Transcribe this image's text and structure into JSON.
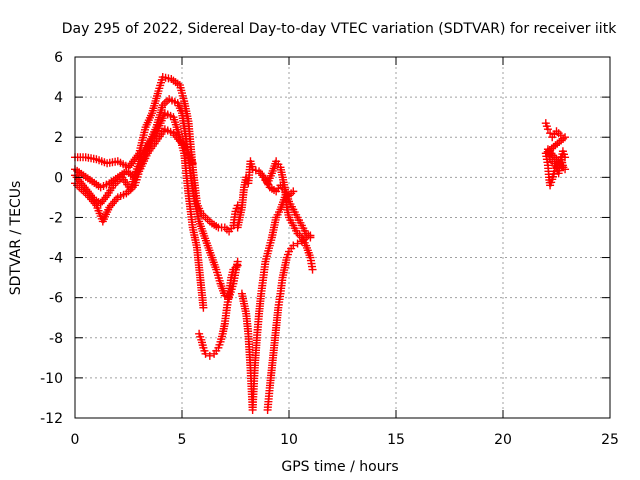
{
  "chart_data": {
    "type": "scatter",
    "title": "Day 295 of 2022, Sidereal Day-to-day VTEC variation (SDTVAR) for receiver iitk",
    "xlabel": "GPS time / hours",
    "ylabel": "SDTVAR / TECUs",
    "xlim": [
      0,
      25
    ],
    "ylim": [
      -12,
      6
    ],
    "xticks": [
      0,
      5,
      10,
      15,
      20,
      25
    ],
    "yticks": [
      -12,
      -10,
      -8,
      -6,
      -4,
      -2,
      0,
      2,
      4,
      6
    ],
    "grid": true,
    "marker": "plus",
    "color": "#ff0000",
    "series": [
      {
        "points": [
          [
            0.0,
            1.0
          ],
          [
            0.5,
            1.0
          ],
          [
            1.0,
            0.9
          ],
          [
            1.5,
            0.7
          ],
          [
            2.0,
            0.8
          ],
          [
            2.5,
            0.5
          ],
          [
            3.0,
            1.2
          ],
          [
            3.3,
            2.5
          ],
          [
            3.6,
            3.2
          ],
          [
            3.9,
            4.3
          ],
          [
            4.1,
            5.0
          ],
          [
            4.5,
            4.9
          ],
          [
            4.9,
            4.6
          ],
          [
            5.1,
            3.8
          ],
          [
            5.3,
            2.8
          ],
          [
            5.5,
            0.5
          ],
          [
            5.7,
            -1.3
          ],
          [
            5.9,
            -1.8
          ],
          [
            6.1,
            -2.0
          ],
          [
            6.4,
            -2.3
          ],
          [
            6.7,
            -2.5
          ],
          [
            7.0,
            -2.5
          ],
          [
            7.2,
            -2.7
          ],
          [
            7.4,
            -2.4
          ],
          [
            7.5,
            -1.7
          ],
          [
            7.6,
            -1.4
          ]
        ]
      },
      {
        "points": [
          [
            0.0,
            0.4
          ],
          [
            0.4,
            0.1
          ],
          [
            0.8,
            -0.2
          ],
          [
            1.2,
            -0.5
          ],
          [
            1.6,
            -0.3
          ],
          [
            2.0,
            0.0
          ],
          [
            2.4,
            0.3
          ],
          [
            2.8,
            0.0
          ],
          [
            3.2,
            0.9
          ],
          [
            3.5,
            1.8
          ],
          [
            3.8,
            2.5
          ],
          [
            4.1,
            3.6
          ],
          [
            4.4,
            3.9
          ],
          [
            4.8,
            3.7
          ],
          [
            5.0,
            3.2
          ],
          [
            5.2,
            1.8
          ],
          [
            5.4,
            0.2
          ],
          [
            5.6,
            -1.2
          ],
          [
            5.8,
            -2.2
          ],
          [
            6.0,
            -2.8
          ],
          [
            6.2,
            -3.4
          ],
          [
            6.4,
            -4.0
          ],
          [
            6.6,
            -4.6
          ],
          [
            6.8,
            -5.3
          ],
          [
            7.0,
            -5.9
          ],
          [
            7.2,
            -6.0
          ],
          [
            7.4,
            -5.3
          ],
          [
            7.6,
            -4.2
          ]
        ]
      },
      {
        "points": [
          [
            0.0,
            0.1
          ],
          [
            0.3,
            -0.3
          ],
          [
            0.6,
            -0.7
          ],
          [
            0.9,
            -1.1
          ],
          [
            1.2,
            -1.3
          ],
          [
            1.5,
            -0.9
          ],
          [
            1.8,
            -0.4
          ],
          [
            2.2,
            0.0
          ],
          [
            2.6,
            -0.6
          ],
          [
            3.0,
            0.8
          ],
          [
            3.4,
            1.6
          ],
          [
            3.8,
            2.2
          ],
          [
            4.2,
            3.2
          ],
          [
            4.6,
            3.0
          ],
          [
            4.9,
            2.0
          ],
          [
            5.1,
            1.2
          ],
          [
            5.3,
            -0.8
          ],
          [
            5.5,
            -2.5
          ],
          [
            5.7,
            -3.5
          ],
          [
            5.8,
            -4.5
          ],
          [
            5.9,
            -5.5
          ],
          [
            6.0,
            -6.5
          ]
        ]
      },
      {
        "points": [
          [
            0.0,
            -0.3
          ],
          [
            0.3,
            -0.6
          ],
          [
            0.6,
            -0.9
          ],
          [
            1.0,
            -1.4
          ],
          [
            1.3,
            -2.2
          ],
          [
            1.6,
            -1.5
          ],
          [
            2.0,
            -1.0
          ],
          [
            2.4,
            -0.8
          ],
          [
            2.8,
            -0.4
          ],
          [
            3.0,
            0.3
          ],
          [
            3.4,
            1.2
          ],
          [
            3.8,
            1.8
          ],
          [
            4.2,
            2.4
          ],
          [
            4.6,
            2.2
          ],
          [
            4.9,
            1.8
          ],
          [
            5.2,
            1.5
          ],
          [
            5.5,
            0.7
          ]
        ]
      },
      {
        "points": [
          [
            5.8,
            -7.8
          ],
          [
            5.9,
            -8.1
          ],
          [
            6.0,
            -8.5
          ],
          [
            6.1,
            -8.8
          ],
          [
            6.3,
            -8.9
          ],
          [
            6.5,
            -8.8
          ],
          [
            6.7,
            -8.5
          ],
          [
            6.8,
            -8.2
          ],
          [
            6.9,
            -7.8
          ],
          [
            7.0,
            -7.3
          ],
          [
            7.1,
            -6.5
          ],
          [
            7.2,
            -5.8
          ],
          [
            7.3,
            -5.0
          ],
          [
            7.4,
            -4.6
          ],
          [
            7.5,
            -4.5
          ],
          [
            7.6,
            -4.4
          ]
        ]
      },
      {
        "points": [
          [
            7.6,
            -2.5
          ],
          [
            7.8,
            -1.5
          ],
          [
            7.9,
            -0.5
          ],
          [
            8.0,
            0.0
          ],
          [
            8.1,
            -0.3
          ],
          [
            8.2,
            0.8
          ],
          [
            8.3,
            0.4
          ],
          [
            8.6,
            0.3
          ],
          [
            8.9,
            -0.1
          ],
          [
            9.1,
            -0.5
          ],
          [
            9.4,
            -0.7
          ],
          [
            9.6,
            -0.4
          ],
          [
            9.8,
            -0.6
          ],
          [
            10.0,
            -1.2
          ],
          [
            10.2,
            -1.6
          ],
          [
            10.4,
            -2.0
          ],
          [
            10.6,
            -2.4
          ],
          [
            10.8,
            -2.8
          ],
          [
            11.0,
            -3.0
          ]
        ]
      },
      {
        "points": [
          [
            7.8,
            -5.8
          ],
          [
            7.9,
            -6.3
          ],
          [
            8.0,
            -6.8
          ],
          [
            8.1,
            -7.8
          ],
          [
            8.2,
            -9.5
          ],
          [
            8.3,
            -11.6
          ],
          [
            8.4,
            -9.5
          ],
          [
            8.5,
            -8.0
          ],
          [
            8.6,
            -6.8
          ],
          [
            8.7,
            -5.8
          ],
          [
            8.8,
            -5.0
          ],
          [
            8.9,
            -4.2
          ],
          [
            9.0,
            -3.8
          ],
          [
            9.1,
            -3.4
          ],
          [
            9.2,
            -3.0
          ],
          [
            9.3,
            -2.5
          ],
          [
            9.4,
            -2.0
          ],
          [
            9.6,
            -1.6
          ],
          [
            9.8,
            -1.0
          ],
          [
            10.0,
            -0.9
          ],
          [
            10.2,
            -0.7
          ]
        ]
      },
      {
        "points": [
          [
            8.8,
            0.0
          ],
          [
            9.0,
            -0.3
          ],
          [
            9.2,
            0.2
          ],
          [
            9.4,
            0.8
          ],
          [
            9.6,
            0.5
          ],
          [
            9.8,
            -0.5
          ],
          [
            9.9,
            -1.5
          ],
          [
            10.0,
            -2.0
          ],
          [
            10.2,
            -2.4
          ],
          [
            10.4,
            -2.8
          ],
          [
            10.6,
            -3.0
          ],
          [
            10.8,
            -3.4
          ],
          [
            11.0,
            -4.0
          ],
          [
            11.1,
            -4.6
          ]
        ]
      },
      {
        "points": [
          [
            9.0,
            -11.6
          ],
          [
            9.1,
            -10.5
          ],
          [
            9.2,
            -9.5
          ],
          [
            9.3,
            -8.5
          ],
          [
            9.4,
            -7.5
          ],
          [
            9.5,
            -6.5
          ],
          [
            9.6,
            -5.8
          ],
          [
            9.7,
            -5.0
          ],
          [
            9.8,
            -4.5
          ],
          [
            9.9,
            -4.0
          ],
          [
            10.0,
            -3.7
          ],
          [
            10.2,
            -3.4
          ],
          [
            10.4,
            -3.3
          ],
          [
            10.6,
            -3.2
          ],
          [
            10.8,
            -3.0
          ],
          [
            11.0,
            -2.9
          ]
        ]
      },
      {
        "points": [
          [
            22.0,
            2.7
          ],
          [
            22.1,
            2.4
          ],
          [
            22.2,
            2.2
          ],
          [
            22.3,
            2.0
          ],
          [
            22.5,
            2.3
          ],
          [
            22.7,
            2.1
          ],
          [
            22.9,
            2.0
          ],
          [
            22.0,
            1.2
          ],
          [
            22.1,
            0.6
          ],
          [
            22.15,
            0.0
          ],
          [
            22.2,
            -0.4
          ],
          [
            22.3,
            -0.1
          ],
          [
            22.4,
            0.3
          ],
          [
            22.5,
            0.5
          ],
          [
            22.6,
            0.8
          ],
          [
            22.7,
            1.0
          ],
          [
            22.8,
            0.6
          ],
          [
            22.9,
            0.4
          ],
          [
            22.1,
            1.4
          ],
          [
            22.2,
            0.9
          ],
          [
            22.4,
            0.7
          ],
          [
            22.6,
            0.2
          ],
          [
            22.8,
            1.3
          ],
          [
            22.9,
            1.0
          ]
        ]
      }
    ]
  }
}
